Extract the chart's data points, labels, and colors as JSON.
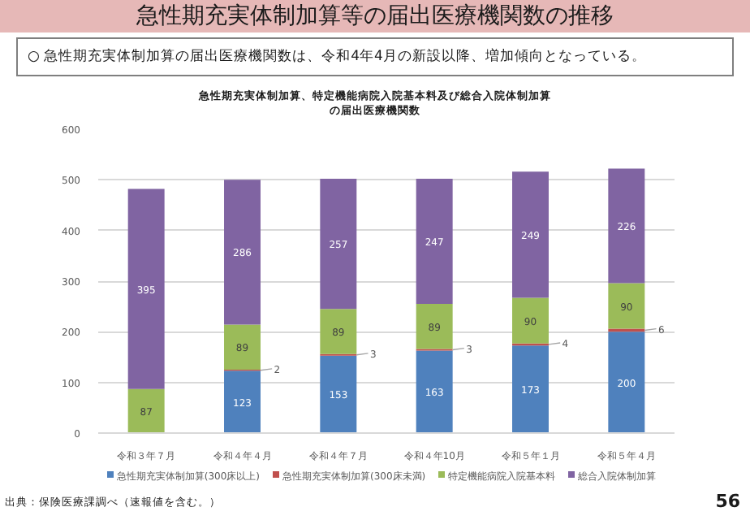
{
  "chart_data": {
    "type": "bar",
    "stacked": true,
    "title": "急性期充実体制加算等の届出医療機関数の推移",
    "subtitle": "○ 急性期充実体制加算の届出医療機関数は、令和4年4月の新設以降、増加傾向となっている。",
    "annotations": [
      "急性期充実体制加算、特定機能病院入院基本料及び総合入院体制加算の届出医療機関数",
      "出典：保険医療課調べ（速報値を含む。）",
      "56"
    ],
    "categories": [
      "令和３年７月",
      "令和４年４月",
      "令和４年７月",
      "令和４年10月",
      "令和５年１月",
      "令和５年４月"
    ],
    "series": [
      {
        "name": "急性期充実体制加算(300床以上)",
        "color": "#4f81bd",
        "values": [
          null,
          123,
          153,
          163,
          173,
          200
        ]
      },
      {
        "name": "急性期充実体制加算(300床未満)",
        "color": "#c0504d",
        "values": [
          null,
          2,
          3,
          3,
          4,
          6
        ]
      },
      {
        "name": "特定機能病院入院基本料",
        "color": "#9bbb59",
        "values": [
          87,
          89,
          89,
          89,
          90,
          90
        ]
      },
      {
        "name": "総合入院体制加算",
        "color": "#8064a2",
        "values": [
          395,
          286,
          257,
          247,
          249,
          226
        ]
      }
    ],
    "ylim": [
      0,
      600
    ],
    "yticks": [
      0,
      100,
      200,
      300,
      400,
      500,
      600
    ],
    "grid": "y",
    "legend": "bottom",
    "data_labels": true
  }
}
